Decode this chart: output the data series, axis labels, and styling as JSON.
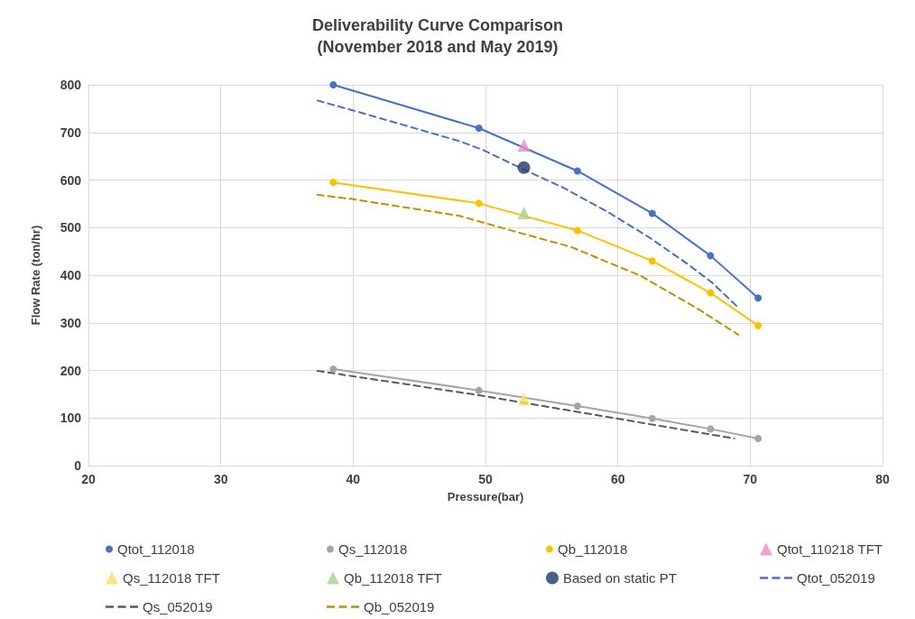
{
  "chart_data": {
    "type": "line",
    "title": "Deliverability Curve Comparison",
    "subtitle": "(November 2018 and May 2019)",
    "xlabel": "Pressure(bar)",
    "ylabel": "Flow Rate (ton/hr)",
    "xlim": [
      20,
      80
    ],
    "xticks": [
      20,
      30,
      40,
      50,
      60,
      70,
      80
    ],
    "ylim": [
      0,
      800
    ],
    "yticks": [
      0,
      100,
      200,
      300,
      400,
      500,
      600,
      700,
      800
    ],
    "grid": true,
    "legend": "bottom",
    "series": [
      {
        "name": "Qtot_112018",
        "color": "#4472c4",
        "marker": "circle",
        "line_style": "solid",
        "x": [
          38.5,
          49.5,
          56.95,
          62.6,
          67.0,
          70.6
        ],
        "values": [
          800,
          709,
          619,
          530,
          441,
          352
        ]
      },
      {
        "name": "Qs_112018",
        "color": "#a5a5a5",
        "marker": "circle",
        "line_style": "solid",
        "x": [
          38.5,
          49.5,
          56.95,
          62.6,
          67.0,
          70.6
        ],
        "values": [
          203,
          158,
          125,
          99,
          77,
          57
        ]
      },
      {
        "name": "Qb_112018",
        "color": "#ffc000",
        "marker": "circle",
        "line_style": "solid",
        "x": [
          38.5,
          49.5,
          56.95,
          62.6,
          67.0,
          70.6
        ],
        "values": [
          595,
          551,
          494,
          430,
          363,
          294
        ]
      },
      {
        "name": "Qtot_110218 TFT",
        "type": "scatter",
        "color": "#e98cc4",
        "marker": "triangle",
        "x": [
          52.9
        ],
        "values": [
          673
        ]
      },
      {
        "name": "Qs_112018 TFT",
        "type": "scatter",
        "color": "#ffd966",
        "marker": "triangle",
        "x": [
          52.9
        ],
        "values": [
          140
        ]
      },
      {
        "name": "Qb_112018 TFT",
        "type": "scatter",
        "color": "#a9d18e",
        "marker": "triangle",
        "x": [
          52.9
        ],
        "values": [
          531
        ]
      },
      {
        "name": "Based on static PT",
        "type": "scatter",
        "color": "#1f3864",
        "marker": "circle",
        "x": [
          52.9
        ],
        "values": [
          626
        ]
      },
      {
        "name": "Qtot_052019",
        "color": "#4472c4",
        "marker": "none",
        "line_style": "dashed",
        "x": [
          37.3,
          39.9,
          48.0,
          49.9,
          52.9,
          55.8,
          59.3,
          62.4,
          65.2,
          67.1,
          69.1
        ],
        "values": [
          767,
          747,
          682,
          662,
          622,
          585,
          532,
          479,
          425,
          385,
          332
        ]
      },
      {
        "name": "Qs_052019",
        "color": "#595959",
        "marker": "none",
        "line_style": "dashed",
        "x": [
          37.3,
          49.5,
          68.8
        ],
        "values": [
          199,
          148,
          57
        ]
      },
      {
        "name": "Qb_052019",
        "color": "#bf9000",
        "marker": "none",
        "line_style": "dashed",
        "x": [
          37.3,
          39.9,
          48.0,
          52.2,
          56.5,
          61.7,
          65.9,
          69.1
        ],
        "values": [
          569,
          560,
          525,
          492,
          459,
          399,
          332,
          275
        ]
      }
    ]
  }
}
